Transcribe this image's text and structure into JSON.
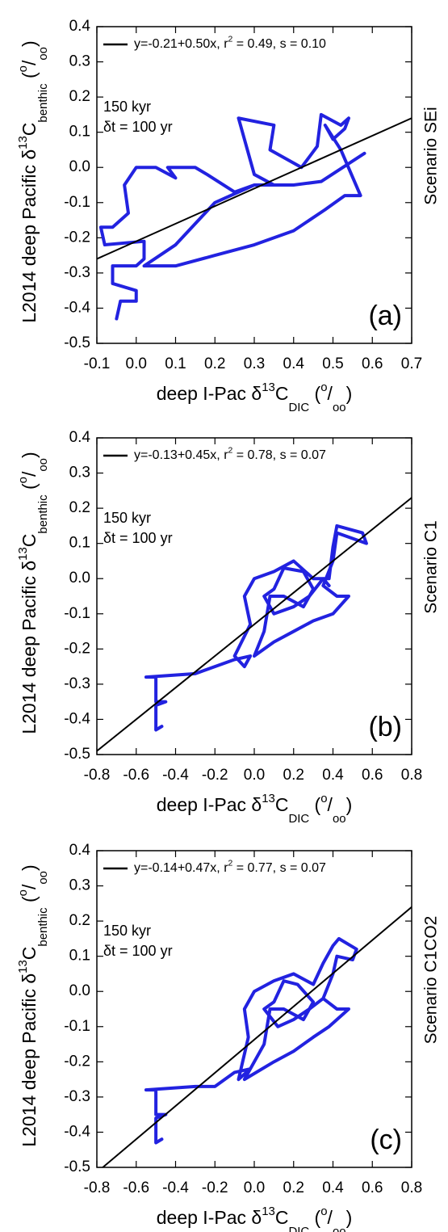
{
  "chart_data": [
    {
      "type": "line",
      "panel_label": "(a)",
      "scenario": "Scenario SEi",
      "annotations": [
        "150 kyr",
        "δt = 100 yr"
      ],
      "xlabel": [
        "deep I-Pac δ",
        "13",
        "C",
        "DIC",
        " (",
        "o",
        "/",
        "oo",
        ")"
      ],
      "ylabel": [
        "L2014 deep Pacific δ",
        "13",
        "C",
        "benthic",
        " (",
        "o",
        "/",
        "oo",
        ")"
      ],
      "xlim": [
        -0.1,
        0.7
      ],
      "ylim": [
        -0.5,
        0.4
      ],
      "grid": false,
      "xticks": [
        -0.1,
        {
          "value": 0,
          "label": "0.0"
        },
        0.1,
        0.2,
        0.3,
        0.4,
        0.5,
        0.6,
        0.7
      ],
      "yticks": [
        -0.5,
        -0.4,
        -0.3,
        -0.2,
        -0.1,
        {
          "value": 0,
          "label": "0.0"
        },
        0.1,
        0.2,
        0.3,
        0.4
      ],
      "series": [
        {
          "name": [
            "y=-0.21+0.50x, r",
            "2",
            " = 0.49, s = 0.10"
          ],
          "color": "#000000",
          "x": [
            -0.1,
            0.7
          ],
          "values": [
            -0.26,
            0.14
          ]
        },
        {
          "color": "#2222e0",
          "x": [
            -0.05,
            -0.04,
            0.0,
            0.0,
            -0.06,
            -0.06,
            0.0,
            0.02,
            0.02,
            -0.08,
            -0.09,
            -0.06,
            -0.02,
            -0.03,
            0.0,
            0.05,
            0.1,
            0.08,
            0.15,
            0.18,
            0.25,
            0.3,
            0.35,
            0.3,
            0.26,
            0.35,
            0.34,
            0.42,
            0.46,
            0.47,
            0.52,
            0.54,
            0.53,
            0.5,
            0.48,
            0.52,
            0.57,
            0.53,
            0.48,
            0.4,
            0.3,
            0.2,
            0.1,
            0.02,
            0.1,
            0.2,
            0.3,
            0.4,
            0.47,
            0.58
          ],
          "values": [
            -0.43,
            -0.38,
            -0.38,
            -0.35,
            -0.33,
            -0.28,
            -0.28,
            -0.26,
            -0.21,
            -0.22,
            -0.17,
            -0.17,
            -0.13,
            -0.05,
            0.0,
            0.0,
            -0.03,
            0.0,
            0.0,
            -0.02,
            -0.07,
            -0.05,
            -0.05,
            -0.02,
            0.14,
            0.12,
            0.05,
            0.0,
            0.06,
            0.15,
            0.12,
            0.14,
            0.11,
            0.08,
            0.12,
            0.05,
            -0.08,
            -0.08,
            -0.12,
            -0.18,
            -0.22,
            -0.25,
            -0.28,
            -0.28,
            -0.22,
            -0.1,
            -0.05,
            -0.05,
            -0.04,
            0.04
          ]
        }
      ]
    },
    {
      "type": "line",
      "panel_label": "(b)",
      "scenario": "Scenario C1",
      "annotations": [
        "150 kyr",
        "δt = 100 yr"
      ],
      "xlabel": [
        "deep I-Pac δ",
        "13",
        "C",
        "DIC",
        " (",
        "o",
        "/",
        "oo",
        ")"
      ],
      "ylabel": [
        "L2014 deep Pacific δ",
        "13",
        "C",
        "benthic",
        " (",
        "o",
        "/",
        "oo",
        ")"
      ],
      "xlim": [
        -0.8,
        0.8
      ],
      "ylim": [
        -0.5,
        0.4
      ],
      "grid": false,
      "xticks": [
        -0.8,
        -0.6,
        -0.4,
        -0.2,
        {
          "value": 0,
          "label": "0.0"
        },
        0.2,
        0.4,
        0.6,
        0.8
      ],
      "yticks": [
        -0.5,
        -0.4,
        -0.3,
        -0.2,
        -0.1,
        {
          "value": 0,
          "label": "0.0"
        },
        0.1,
        0.2,
        0.3,
        0.4
      ],
      "series": [
        {
          "name": [
            "y=-0.13+0.45x, r",
            "2",
            " = 0.78, s = 0.07"
          ],
          "color": "#000000",
          "x": [
            -0.8,
            0.8
          ],
          "values": [
            -0.49,
            0.23
          ]
        },
        {
          "color": "#2222e0",
          "x": [
            -0.47,
            -0.5,
            -0.5,
            -0.45,
            -0.5,
            -0.5,
            -0.55,
            -0.3,
            -0.1,
            -0.02,
            -0.05,
            -0.1,
            -0.02,
            -0.05,
            0.0,
            0.1,
            0.2,
            0.3,
            0.38,
            0.4,
            0.42,
            0.55,
            0.57,
            0.42,
            0.4,
            0.35,
            0.42,
            0.48,
            0.4,
            0.3,
            0.2,
            0.1,
            0.0,
            0.05,
            0.08,
            0.15,
            0.25,
            0.3,
            0.25,
            0.15,
            0.1,
            0.05,
            0.1,
            0.2,
            0.28,
            0.35,
            0.38
          ],
          "values": [
            -0.42,
            -0.43,
            -0.36,
            -0.35,
            -0.35,
            -0.28,
            -0.28,
            -0.27,
            -0.23,
            -0.22,
            -0.25,
            -0.22,
            -0.13,
            -0.05,
            0.0,
            0.02,
            0.05,
            0.0,
            0.0,
            0.09,
            0.15,
            0.13,
            0.1,
            0.13,
            0.05,
            -0.02,
            -0.05,
            -0.05,
            -0.1,
            -0.12,
            -0.15,
            -0.18,
            -0.22,
            -0.15,
            -0.05,
            -0.05,
            -0.08,
            -0.03,
            0.02,
            0.03,
            -0.03,
            -0.05,
            -0.1,
            -0.08,
            -0.05,
            0.0,
            -0.02
          ]
        }
      ]
    },
    {
      "type": "line",
      "panel_label": "(c)",
      "scenario": "Scenario C1CO2",
      "annotations": [
        "150 kyr",
        "δt = 100 yr"
      ],
      "xlabel": [
        "deep I-Pac δ",
        "13",
        "C",
        "DIC",
        " (",
        "o",
        "/",
        "oo",
        ")"
      ],
      "ylabel": [
        "L2014 deep Pacific δ",
        "13",
        "C",
        "benthic",
        " (",
        "o",
        "/",
        "oo",
        ")"
      ],
      "xlim": [
        -0.8,
        0.8
      ],
      "ylim": [
        -0.5,
        0.4
      ],
      "grid": false,
      "xticks": [
        -0.8,
        -0.6,
        -0.4,
        -0.2,
        {
          "value": 0,
          "label": "0.0"
        },
        0.2,
        0.4,
        0.6,
        0.8
      ],
      "yticks": [
        -0.5,
        -0.4,
        -0.3,
        -0.2,
        -0.1,
        {
          "value": 0,
          "label": "0.0"
        },
        0.1,
        0.2,
        0.3,
        0.4
      ],
      "series": [
        {
          "name": [
            "y=-0.14+0.47x, r",
            "2",
            " = 0.77, s = 0.07"
          ],
          "color": "#000000",
          "x": [
            -0.77,
            0.8
          ],
          "values": [
            -0.5,
            0.24
          ]
        },
        {
          "color": "#2222e0",
          "x": [
            -0.47,
            -0.5,
            -0.5,
            -0.45,
            -0.5,
            -0.5,
            -0.55,
            -0.3,
            -0.2,
            -0.1,
            -0.02,
            -0.08,
            -0.03,
            -0.05,
            0.0,
            0.1,
            0.2,
            0.3,
            0.35,
            0.4,
            0.43,
            0.52,
            0.5,
            0.42,
            0.4,
            0.35,
            0.42,
            0.48,
            0.38,
            0.3,
            0.2,
            0.1,
            -0.05,
            0.05,
            0.08,
            0.15,
            0.25,
            0.3,
            0.22,
            0.15,
            0.1,
            0.05,
            0.12,
            0.2,
            0.28,
            0.35
          ],
          "values": [
            -0.42,
            -0.43,
            -0.36,
            -0.35,
            -0.35,
            -0.28,
            -0.28,
            -0.27,
            -0.27,
            -0.23,
            -0.22,
            -0.25,
            -0.13,
            -0.05,
            0.0,
            0.03,
            0.05,
            0.02,
            0.08,
            0.13,
            0.15,
            0.12,
            0.09,
            0.1,
            0.05,
            -0.02,
            -0.05,
            -0.05,
            -0.1,
            -0.13,
            -0.17,
            -0.2,
            -0.25,
            -0.15,
            -0.05,
            -0.05,
            -0.08,
            -0.03,
            0.02,
            0.03,
            -0.03,
            -0.05,
            -0.1,
            -0.08,
            -0.05,
            -0.02
          ]
        }
      ]
    }
  ]
}
